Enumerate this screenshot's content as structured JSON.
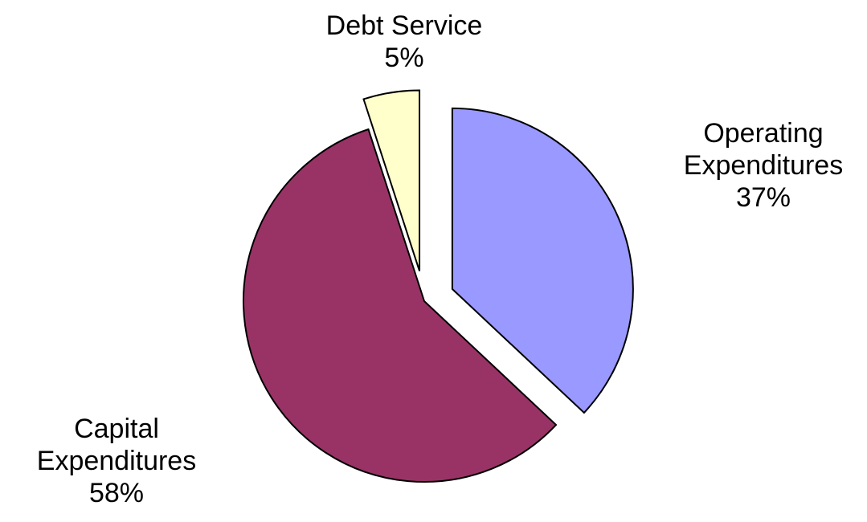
{
  "chart_data": {
    "type": "pie",
    "title": "",
    "slices": [
      {
        "name": "Operating Expenditures",
        "name_lines": [
          "Operating",
          "Expenditures"
        ],
        "value": 37,
        "label": "37%",
        "color": "#9999ff",
        "exploded": true
      },
      {
        "name": "Capital Expenditures",
        "name_lines": [
          "Capital",
          "Expenditures"
        ],
        "value": 58,
        "label": "58%",
        "color": "#993366",
        "exploded": false
      },
      {
        "name": "Debt Service",
        "name_lines": [
          "Debt Service"
        ],
        "value": 5,
        "label": "5%",
        "color": "#ffffcc",
        "exploded": true
      }
    ],
    "legend": "none",
    "start_angle_deg": 0,
    "direction": "clockwise"
  }
}
